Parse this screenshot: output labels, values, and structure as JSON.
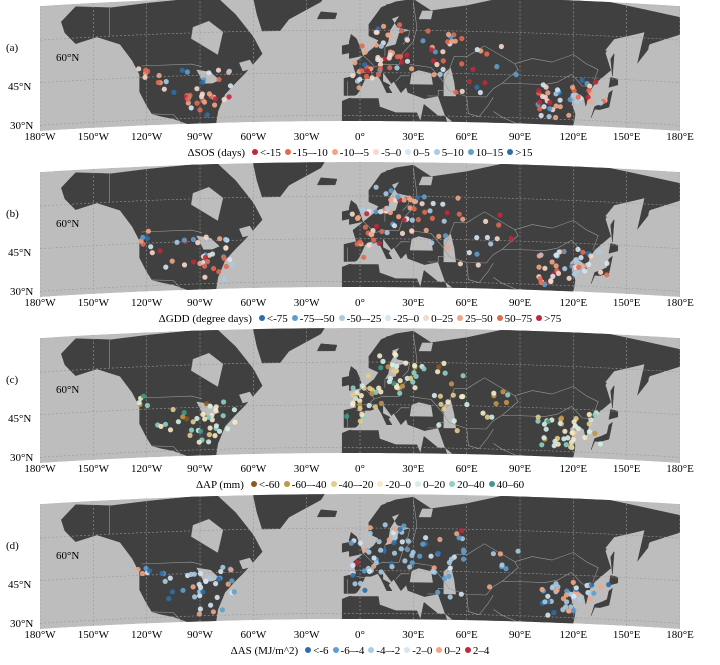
{
  "lat_labels": [
    "60°N",
    "45°N",
    "30°N"
  ],
  "lon_labels": [
    "180°W",
    "150°W",
    "120°W",
    "90°W",
    "60°W",
    "30°W",
    "0°",
    "30°E",
    "60°E",
    "90°E",
    "120°E",
    "150°E",
    "180°E"
  ],
  "colors": {
    "ocean": "#bdbdbd",
    "land": "#404040",
    "border": "#9a9a9a",
    "grid": "#9a9a9a"
  },
  "panels": [
    {
      "id": "a",
      "label": "(a)",
      "legend_title": "ΔSOS (days)",
      "legend": [
        {
          "label": "<-15",
          "color": "#c0283a"
        },
        {
          "label": "-15–-10",
          "color": "#e06a52"
        },
        {
          "label": "-10–-5",
          "color": "#f0a585"
        },
        {
          "label": "-5–0",
          "color": "#f8d8c8"
        },
        {
          "label": "0–5",
          "color": "#d6e6f2"
        },
        {
          "label": "5–10",
          "color": "#a9cbe3"
        },
        {
          "label": "10–15",
          "color": "#5e9fcd"
        },
        {
          "label": ">15",
          "color": "#2d6ea9"
        }
      ]
    },
    {
      "id": "b",
      "label": "(b)",
      "legend_title": "ΔGDD (degree days)",
      "legend": [
        {
          "label": "<-75",
          "color": "#2d6ea9"
        },
        {
          "label": "-75–-50",
          "color": "#5e9fcd"
        },
        {
          "label": "-50–-25",
          "color": "#a9cbe3"
        },
        {
          "label": "-25–0",
          "color": "#d6e6f2"
        },
        {
          "label": "0–25",
          "color": "#f8d8c8"
        },
        {
          "label": "25–50",
          "color": "#f0a585"
        },
        {
          "label": "50–75",
          "color": "#e06a52"
        },
        {
          "label": ">75",
          "color": "#c0283a"
        }
      ]
    },
    {
      "id": "c",
      "label": "(c)",
      "legend_title": "ΔAP (mm)",
      "legend": [
        {
          "label": "<-60",
          "color": "#8c5a1e"
        },
        {
          "label": "-60–-40",
          "color": "#c49444"
        },
        {
          "label": "-40–-20",
          "color": "#e6cc8a"
        },
        {
          "label": "-20–0",
          "color": "#f6ebc8"
        },
        {
          "label": "0–20",
          "color": "#d4eee8"
        },
        {
          "label": "20–40",
          "color": "#8ed0c4"
        },
        {
          "label": "40–60",
          "color": "#3a9c8c"
        }
      ]
    },
    {
      "id": "d",
      "label": "(d)",
      "legend_title": "ΔAS (MJ/m^2)",
      "legend": [
        {
          "label": "<-6",
          "color": "#2d6ea9"
        },
        {
          "label": "-6–-4",
          "color": "#5e9fcd"
        },
        {
          "label": "-4–-2",
          "color": "#a9cbe3"
        },
        {
          "label": "-2–0",
          "color": "#d6e6f2"
        },
        {
          "label": "0–2",
          "color": "#f0a585"
        },
        {
          "label": "2–4",
          "color": "#c0283a"
        }
      ]
    }
  ]
}
